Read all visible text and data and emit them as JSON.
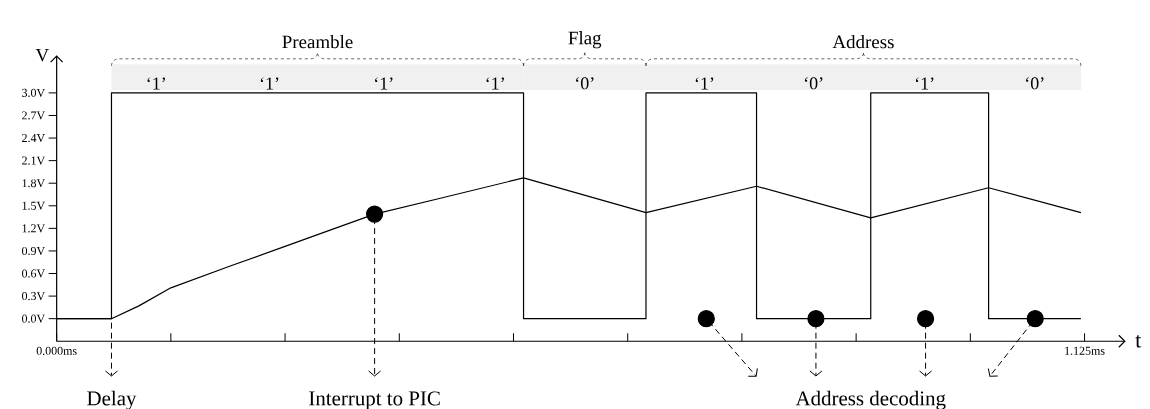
{
  "chart_data": {
    "type": "line",
    "xlabel": "t",
    "ylabel": "V",
    "xlim": [
      0,
      1.17
    ],
    "ylim": [
      -0.3,
      3.5
    ],
    "xticks": [
      {
        "value": 0,
        "label": "0.000ms"
      },
      {
        "value": 0.125,
        "label": null
      },
      {
        "value": 0.25,
        "label": null
      },
      {
        "value": 0.375,
        "label": null
      },
      {
        "value": 0.5,
        "label": null
      },
      {
        "value": 0.625,
        "label": null
      },
      {
        "value": 0.75,
        "label": null
      },
      {
        "value": 0.875,
        "label": null
      },
      {
        "value": 1.0,
        "label": null
      },
      {
        "value": 1.125,
        "label": "1.125ms"
      }
    ],
    "yticks": [
      {
        "value": 0,
        "label": "0.0V"
      },
      {
        "value": 0.3,
        "label": "0.3V"
      },
      {
        "value": 0.6,
        "label": "0.6V"
      },
      {
        "value": 0.9,
        "label": "0.9V"
      },
      {
        "value": 1.2,
        "label": "1.2V"
      },
      {
        "value": 1.5,
        "label": "1.5V"
      },
      {
        "value": 1.8,
        "label": "1.8V"
      },
      {
        "value": 2.1,
        "label": "2.1V"
      },
      {
        "value": 2.4,
        "label": "2.4V"
      },
      {
        "value": 2.7,
        "label": "2.7V"
      },
      {
        "value": 3.0,
        "label": "3.0V"
      }
    ],
    "series": [
      {
        "type": "step",
        "color": "#000000",
        "x": [
          0,
          0.06,
          0.511,
          0.645,
          0.766,
          0.891,
          1.02,
          1.121
        ],
        "values": [
          0,
          3.0,
          0,
          3.0,
          0,
          3.0,
          0,
          0
        ]
      },
      {
        "type": "line",
        "color": "#000000",
        "x": [
          0,
          0.06,
          0.09,
          0.125,
          0.19,
          0.25,
          0.3,
          0.348,
          0.42,
          0.511,
          0.645,
          0.766,
          0.891,
          1.02,
          1.121
        ],
        "values": [
          0,
          0,
          0.17,
          0.41,
          0.7,
          0.96,
          1.18,
          1.39,
          1.6,
          1.87,
          1.41,
          1.76,
          1.34,
          1.74,
          1.41
        ]
      },
      {
        "type": "scatter",
        "color": "#000000",
        "marker": "circle",
        "x": [
          0.348,
          0.711,
          0.831,
          0.951,
          1.071
        ],
        "values": [
          1.39,
          0,
          0,
          0,
          0
        ]
      }
    ],
    "bands": [
      {
        "axis": "x",
        "from": 0.06,
        "to": 0.511,
        "label": "Preamble",
        "color": "#f0f0f0"
      },
      {
        "axis": "x",
        "from": 0.511,
        "to": 0.645,
        "label": "Flag",
        "color": "#f0f0f0"
      },
      {
        "axis": "x",
        "from": 0.645,
        "to": 1.121,
        "label": "Address",
        "color": "#f0f0f0"
      }
    ],
    "annotations": [
      {
        "text": "‘1’",
        "x": 0.109,
        "y": 3.0
      },
      {
        "text": "‘1’",
        "x": 0.233,
        "y": 3.0
      },
      {
        "text": "‘1’",
        "x": 0.358,
        "y": 3.0
      },
      {
        "text": "‘1’",
        "x": 0.48,
        "y": 3.0
      },
      "‘0’",
      {
        "text": "‘1’",
        "x": 0.709,
        "y": 3.0
      },
      "‘0’",
      {
        "text": "‘1’",
        "x": 0.95,
        "y": 3.0
      },
      "‘0’",
      {
        "text": "Delay",
        "x": 0.06,
        "y": 0
      },
      {
        "text": "Interrupt to PIC",
        "x": 0.348,
        "y": 1.39
      },
      {
        "text": "Address decoding",
        "x": 0.831,
        "y": 0
      }
    ]
  }
}
